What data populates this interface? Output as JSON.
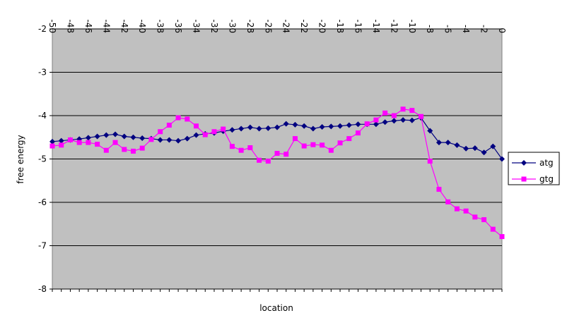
{
  "chart_data": {
    "type": "line",
    "title": "",
    "xlabel": "location",
    "ylabel": "free energy",
    "xlim": [
      -50,
      0
    ],
    "ylim": [
      -8,
      -2
    ],
    "x_tick_labels": [
      "-50",
      "-48",
      "-46",
      "-44",
      "-42",
      "-40",
      "-38",
      "-36",
      "-34",
      "-32",
      "-30",
      "-28",
      "-26",
      "-24",
      "-22",
      "-20",
      "-18",
      "-16",
      "-14",
      "-12",
      "-10",
      "-8",
      "-6",
      "-4",
      "-2",
      "0"
    ],
    "y_tick_labels": [
      "-2",
      "-3",
      "-4",
      "-5",
      "-6",
      "-7",
      "-8"
    ],
    "grid": "horizontal",
    "legend_position": "right",
    "background_color": "#c0c0c0",
    "x": [
      -50,
      -49,
      -48,
      -47,
      -46,
      -45,
      -44,
      -43,
      -42,
      -41,
      -40,
      -39,
      -38,
      -37,
      -36,
      -35,
      -34,
      -33,
      -32,
      -31,
      -30,
      -29,
      -28,
      -27,
      -26,
      -25,
      -24,
      -23,
      -22,
      -21,
      -20,
      -19,
      -18,
      -17,
      -16,
      -15,
      -14,
      -13,
      -12,
      -11,
      -10,
      -9,
      -8,
      -7,
      -6,
      -5,
      -4,
      -3,
      -2,
      -1,
      0
    ],
    "series": [
      {
        "name": "atg",
        "color": "#000080",
        "marker": "diamond",
        "values": [
          -4.6,
          -4.58,
          -4.56,
          -4.54,
          -4.51,
          -4.48,
          -4.45,
          -4.43,
          -4.48,
          -4.5,
          -4.52,
          -4.53,
          -4.56,
          -4.56,
          -4.58,
          -4.53,
          -4.45,
          -4.42,
          -4.4,
          -4.36,
          -4.33,
          -4.3,
          -4.27,
          -4.3,
          -4.29,
          -4.27,
          -4.19,
          -4.21,
          -4.24,
          -4.3,
          -4.26,
          -4.25,
          -4.24,
          -4.22,
          -4.2,
          -4.2,
          -4.2,
          -4.15,
          -4.12,
          -4.1,
          -4.11,
          -4.05,
          -4.35,
          -4.62,
          -4.62,
          -4.68,
          -4.76,
          -4.75,
          -4.85,
          -4.71,
          -5.0
        ]
      },
      {
        "name": "gtg",
        "color": "#ff00ff",
        "marker": "square",
        "values": [
          -4.7,
          -4.68,
          -4.56,
          -4.62,
          -4.62,
          -4.66,
          -4.8,
          -4.62,
          -4.78,
          -4.82,
          -4.75,
          -4.55,
          -4.37,
          -4.22,
          -4.05,
          -4.08,
          -4.24,
          -4.44,
          -4.37,
          -4.31,
          -4.71,
          -4.8,
          -4.74,
          -5.03,
          -5.05,
          -4.87,
          -4.89,
          -4.53,
          -4.7,
          -4.67,
          -4.68,
          -4.8,
          -4.63,
          -4.53,
          -4.4,
          -4.19,
          -4.1,
          -3.94,
          -4.0,
          -3.85,
          -3.88,
          -4.02,
          -5.05,
          -5.7,
          -5.99,
          -6.15,
          -6.2,
          -6.34,
          -6.4,
          -6.62,
          -6.79
        ]
      }
    ]
  }
}
